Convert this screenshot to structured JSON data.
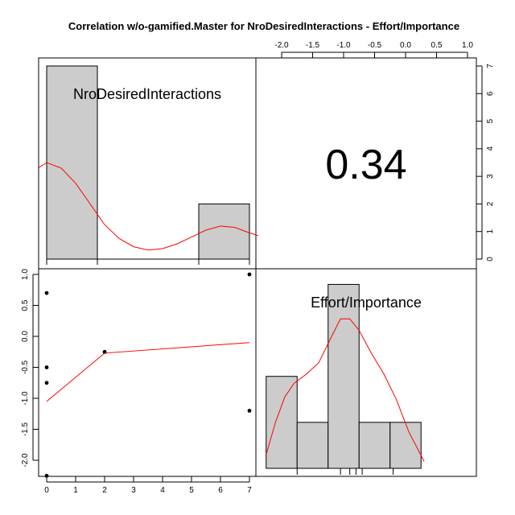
{
  "chart_data": {
    "type": "scatter-matrix",
    "title": "Correlation w/o-gamified.Master for NroDesiredInteractions - Effort/Importance",
    "variables": [
      "NroDesiredInteractions",
      "Effort/Importance"
    ],
    "correlation": "0.34",
    "histogram_x": {
      "bins": [
        {
          "from": 0,
          "to": 1.75,
          "count": 7
        },
        {
          "from": 5.25,
          "to": 7,
          "count": 2
        }
      ],
      "density": [
        [
          -0.3,
          3.3
        ],
        [
          0,
          3.5
        ],
        [
          0.5,
          3.3
        ],
        [
          1,
          2.75
        ],
        [
          1.5,
          2.0
        ],
        [
          2,
          1.25
        ],
        [
          2.5,
          0.75
        ],
        [
          3,
          0.45
        ],
        [
          3.5,
          0.33
        ],
        [
          4,
          0.38
        ],
        [
          4.5,
          0.55
        ],
        [
          5,
          0.8
        ],
        [
          5.5,
          1.05
        ],
        [
          6,
          1.2
        ],
        [
          6.5,
          1.15
        ],
        [
          7,
          0.95
        ],
        [
          7.3,
          0.85
        ]
      ],
      "rug": [
        0,
        1.75,
        5.25,
        7
      ]
    },
    "histogram_y": {
      "bins": [
        {
          "from": -2.25,
          "to": -1.75,
          "count": 2
        },
        {
          "from": -1.75,
          "to": -1.25,
          "count": 1
        },
        {
          "from": -1.25,
          "to": -0.75,
          "count": 4
        },
        {
          "from": -0.75,
          "to": -0.25,
          "count": 1
        },
        {
          "from": -0.25,
          "to": 0.25,
          "count": 1
        }
      ],
      "density": [
        [
          -2.25,
          0.3
        ],
        [
          -2.1,
          1.0
        ],
        [
          -1.95,
          1.55
        ],
        [
          -1.8,
          1.85
        ],
        [
          -1.6,
          2.05
        ],
        [
          -1.4,
          2.3
        ],
        [
          -1.2,
          2.85
        ],
        [
          -1.05,
          3.25
        ],
        [
          -0.9,
          3.25
        ],
        [
          -0.75,
          3.0
        ],
        [
          -0.55,
          2.5
        ],
        [
          -0.35,
          2.05
        ],
        [
          -0.15,
          1.5
        ],
        [
          0.05,
          0.8
        ],
        [
          0.3,
          0.15
        ]
      ],
      "rug": [
        -1.75,
        -1.05,
        -0.9,
        -0.8,
        -0.7,
        -0.2
      ]
    },
    "scatter": {
      "points": [
        [
          0,
          0.7
        ],
        [
          0,
          -0.5
        ],
        [
          0,
          -0.75
        ],
        [
          0,
          -2.25
        ],
        [
          2,
          -0.25
        ],
        [
          7,
          1.0
        ],
        [
          7,
          -1.2
        ]
      ],
      "smooth": [
        [
          0,
          -1.05
        ],
        [
          2,
          -0.27
        ],
        [
          7,
          -0.1
        ]
      ]
    },
    "top_axis": {
      "ticks": [
        -2.0,
        -1.5,
        -1.0,
        -0.5,
        0.0,
        0.5,
        1.0
      ],
      "labels": [
        "-2.0",
        "-1.5",
        "-1.0",
        "-0.5",
        "0.0",
        "0.5",
        "1.0"
      ]
    },
    "right_axis": {
      "ticks": [
        0,
        1,
        2,
        3,
        4,
        5,
        6,
        7
      ],
      "labels": [
        "0",
        "1",
        "2",
        "3",
        "4",
        "5",
        "6",
        "7"
      ]
    },
    "left_axis": {
      "ticks": [
        1.0,
        0.5,
        0.0,
        -0.5,
        -1.0,
        -1.5,
        -2.0
      ],
      "labels": [
        "1.0",
        "0.5",
        "0.0",
        "-0.5",
        "-1.0",
        "-1.5",
        "-2.0"
      ]
    },
    "bottom_axis": {
      "ticks": [
        0,
        1,
        2,
        3,
        4,
        5,
        6,
        7
      ],
      "labels": [
        "0",
        "1",
        "2",
        "3",
        "4",
        "5",
        "6",
        "7"
      ]
    },
    "colors": {
      "bar_fill": "#cccccc",
      "density_line": "#ff0000",
      "smooth_line": "#ff0000",
      "points": "#000000"
    }
  }
}
